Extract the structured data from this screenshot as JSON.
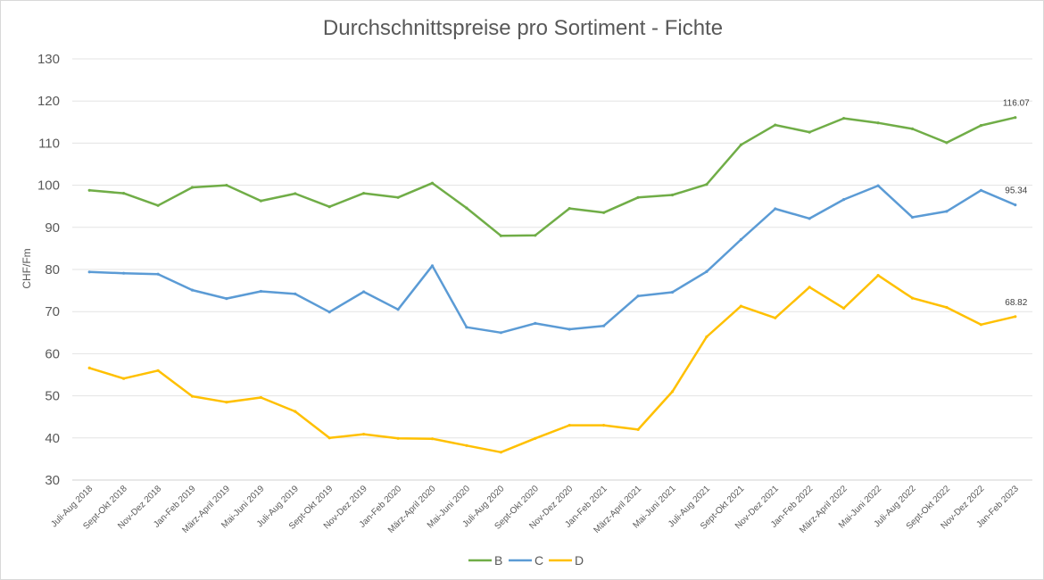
{
  "chart_data": {
    "type": "line",
    "title": "Durchschnittspreise pro Sortiment - Fichte",
    "xlabel": "",
    "ylabel": "CHF/Fm",
    "ylim": [
      30,
      130
    ],
    "yticks": [
      30,
      40,
      50,
      60,
      70,
      80,
      90,
      100,
      110,
      120,
      130
    ],
    "grid": true,
    "legend_position": "bottom",
    "categories": [
      "Juli-Aug 2018",
      "Sept-Okt 2018",
      "Nov-Dez 2018",
      "Jan-Feb 2019",
      "März-April 2019",
      "Mai-Juni 2019",
      "Juli-Aug 2019",
      "Sept-Okt 2019",
      "Nov-Dez 2019",
      "Jan-Feb 2020",
      "März-April 2020",
      "Mai-Juni 2020",
      "Juli-Aug 2020",
      "Sept-Okt 2020",
      "Nov-Dez 2020",
      "Jan-Feb 2021",
      "März-April 2021",
      "Mai-Juni 2021",
      "Juli-Aug 2021",
      "Sept-Okt 2021",
      "Nov-Dez 2021",
      "Jan-Feb 2022",
      "März-April 2022",
      "Mai-Juni 2022",
      "Juli-Aug 2022",
      "Sept-Okt 2022",
      "Nov-Dez 2022",
      "Jan-Feb 2023"
    ],
    "series": [
      {
        "name": "B",
        "color": "#70ad47",
        "values": [
          98.8,
          98.1,
          95.2,
          99.5,
          100.0,
          96.3,
          98.0,
          94.9,
          98.1,
          97.1,
          100.5,
          94.6,
          88.0,
          88.1,
          94.5,
          93.5,
          97.1,
          97.7,
          100.2,
          109.6,
          114.3,
          112.6,
          115.9,
          114.8,
          113.4,
          110.1,
          114.2,
          116.07
        ],
        "end_label": "116.07"
      },
      {
        "name": "C",
        "color": "#5b9bd5",
        "values": [
          79.4,
          79.1,
          78.9,
          75.1,
          73.1,
          74.8,
          74.2,
          69.9,
          74.7,
          70.5,
          80.9,
          66.3,
          65.0,
          67.2,
          65.8,
          66.6,
          73.7,
          74.6,
          79.5,
          87.1,
          94.4,
          92.1,
          96.6,
          99.9,
          92.4,
          93.8,
          98.8,
          95.34
        ],
        "end_label": "95.34"
      },
      {
        "name": "D",
        "color": "#ffc000",
        "values": [
          56.6,
          54.1,
          56.0,
          49.9,
          48.5,
          49.6,
          46.3,
          40.0,
          40.9,
          39.9,
          39.8,
          38.2,
          36.6,
          39.9,
          43.0,
          43.0,
          42.0,
          51.0,
          64.0,
          71.3,
          68.5,
          75.8,
          70.8,
          78.6,
          73.2,
          71.0,
          66.9,
          68.82
        ],
        "end_label": "68.82"
      }
    ]
  }
}
